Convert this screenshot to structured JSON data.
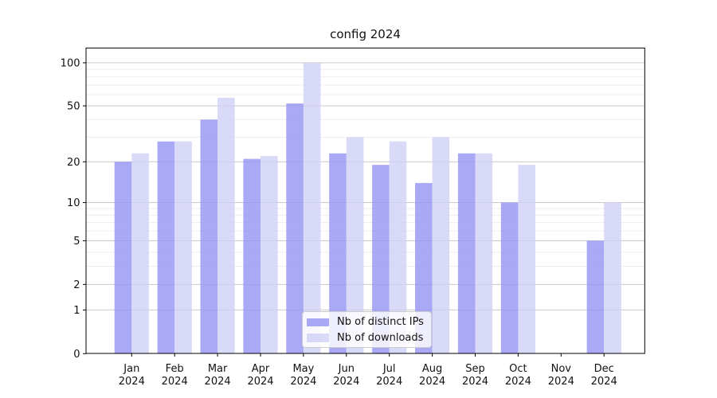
{
  "chart_data": {
    "type": "bar",
    "title": "config 2024",
    "year": "2024",
    "categories": [
      "Jan",
      "Feb",
      "Mar",
      "Apr",
      "May",
      "Jun",
      "Jul",
      "Aug",
      "Sep",
      "Oct",
      "Nov",
      "Dec"
    ],
    "series": [
      {
        "name": "Nb of distinct IPs",
        "color": "#9393f4",
        "values": [
          20,
          28,
          40,
          21,
          52,
          23,
          19,
          14,
          23,
          10,
          0,
          5
        ]
      },
      {
        "name": "Nb of downloads",
        "color": "#cfcff6",
        "values": [
          23,
          28,
          57,
          22,
          100,
          30,
          28,
          30,
          23,
          19,
          0,
          10
        ]
      }
    ],
    "bar_alpha": 0.8,
    "yscale": "log1p",
    "ylim": [
      0,
      127
    ],
    "ytick_values": [
      0,
      1,
      2,
      5,
      10,
      20,
      50,
      100
    ],
    "ytick_labels": [
      "0",
      "1",
      "2",
      "5",
      "10",
      "20",
      "50",
      "100"
    ],
    "minor_ytick_values": [
      3,
      4,
      6,
      7,
      8,
      9,
      30,
      40,
      60,
      70,
      80,
      90
    ],
    "grid": "horizontal",
    "legend_position": "lower center",
    "colors": {
      "axis": "#000000",
      "text": "#111111",
      "grid_major": "#c9c9c9",
      "grid_minor": "#ededed",
      "background": "#ffffff"
    }
  }
}
